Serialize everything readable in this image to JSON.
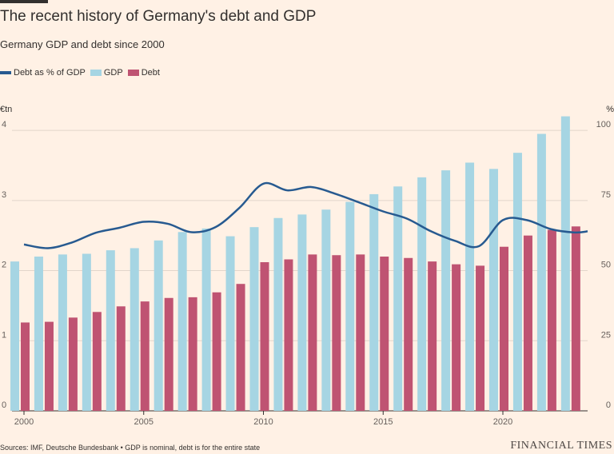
{
  "header": {
    "title": "The recent history of Germany's debt and GDP",
    "subtitle": "Germany GDP and debt since 2000"
  },
  "colors": {
    "background": "#FFF1E5",
    "gdp": "#A6D5E3",
    "debt": "#BF5372",
    "ratio": "#275A90",
    "grid": "#E2D5CB"
  },
  "footer": {
    "source": "Sources: IMF, Deutsche Bundesbank • GDP is nominal, debt is for the entire state",
    "brand": "FINANCIAL TIMES"
  },
  "chart_data": {
    "type": "bar",
    "title": "The recent history of Germany's debt and GDP",
    "subtitle": "Germany GDP and debt since 2000",
    "left_unit": "€tn",
    "right_unit": "%",
    "categories": [
      2000,
      2001,
      2002,
      2003,
      2004,
      2005,
      2006,
      2007,
      2008,
      2009,
      2010,
      2011,
      2012,
      2013,
      2014,
      2015,
      2016,
      2017,
      2018,
      2019,
      2020,
      2021,
      2022,
      2023
    ],
    "x_ticks": [
      "2000",
      "2005",
      "2010",
      "2015",
      "2020"
    ],
    "left_ticks": [
      "0",
      "1",
      "2",
      "3",
      "4"
    ],
    "right_ticks": [
      "0",
      "25",
      "50",
      "75",
      "100"
    ],
    "ylim_left": [
      0,
      4.0
    ],
    "ylim_right": [
      0,
      100
    ],
    "grid": true,
    "legend_position": "top-left",
    "series": [
      {
        "name": "GDP",
        "axis": "left",
        "kind": "bar",
        "values": [
          2.13,
          2.2,
          2.23,
          2.24,
          2.29,
          2.32,
          2.43,
          2.55,
          2.6,
          2.49,
          2.62,
          2.75,
          2.8,
          2.87,
          2.98,
          3.09,
          3.2,
          3.33,
          3.43,
          3.54,
          3.45,
          3.68,
          3.95,
          4.2
        ]
      },
      {
        "name": "Debt",
        "axis": "left",
        "kind": "bar",
        "values": [
          1.26,
          1.27,
          1.33,
          1.41,
          1.49,
          1.56,
          1.61,
          1.62,
          1.69,
          1.81,
          2.12,
          2.16,
          2.23,
          2.22,
          2.23,
          2.2,
          2.18,
          2.13,
          2.09,
          2.07,
          2.34,
          2.5,
          2.58,
          2.63
        ]
      },
      {
        "name": "Debt as % of GDP",
        "axis": "right",
        "kind": "line",
        "values": [
          59.3,
          58.0,
          60.0,
          63.5,
          65.3,
          67.4,
          66.7,
          63.7,
          65.5,
          72.4,
          81.0,
          78.6,
          79.8,
          77.4,
          74.3,
          71.1,
          68.5,
          64.0,
          60.6,
          58.7,
          68.0,
          68.0,
          64.8,
          63.6
        ]
      }
    ],
    "legend": [
      {
        "label": "Debt as % of GDP",
        "swatch": "line",
        "color_key": "ratio"
      },
      {
        "label": "GDP",
        "swatch": "box",
        "color_key": "gdp"
      },
      {
        "label": "Debt",
        "swatch": "box",
        "color_key": "debt"
      }
    ]
  }
}
